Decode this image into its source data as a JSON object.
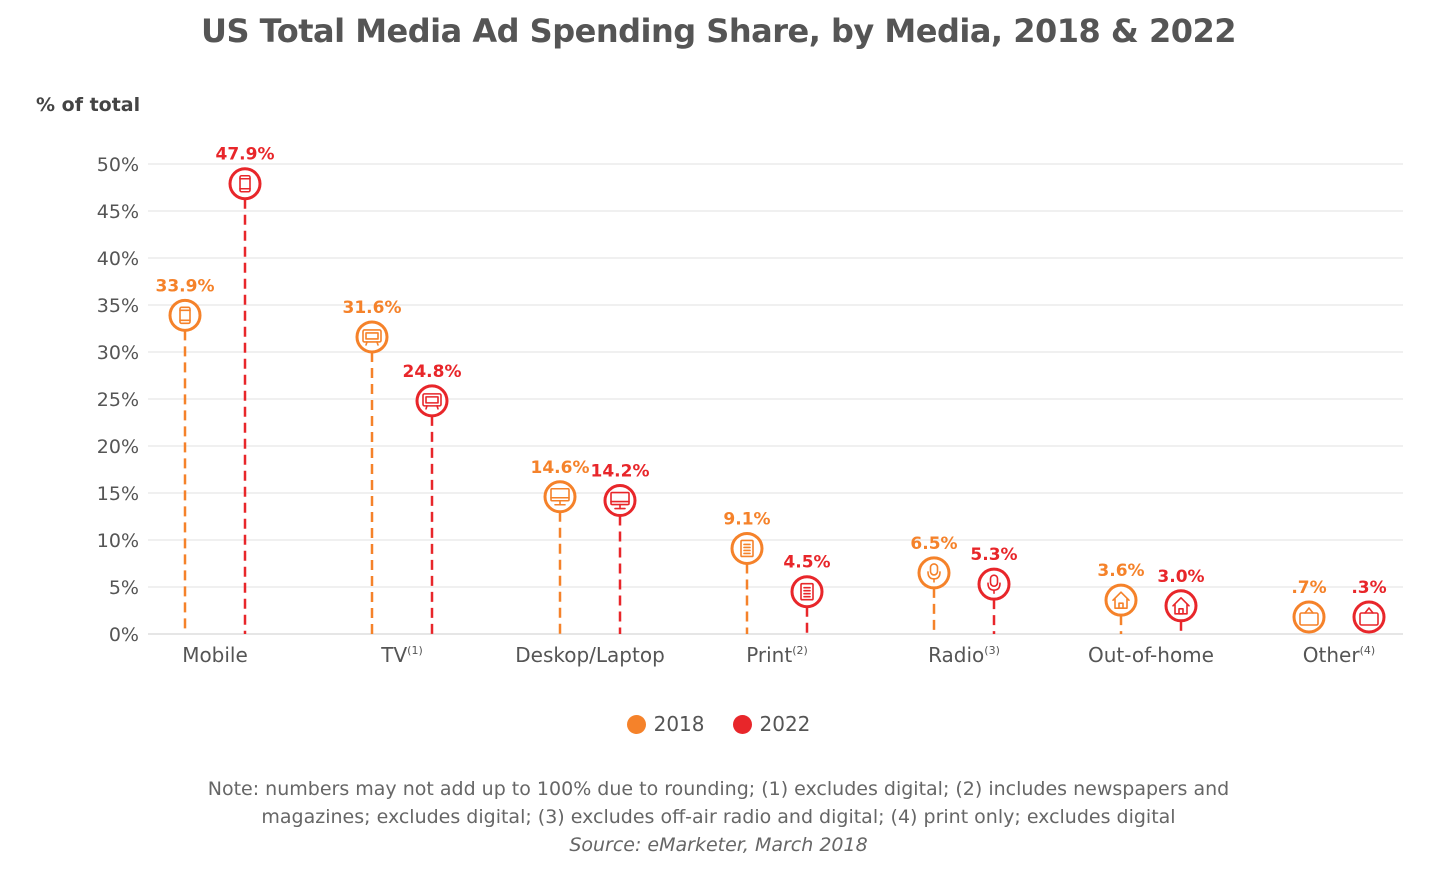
{
  "title": "US Total Media Ad Spending Share, by Media, 2018 & 2022",
  "note_line1": "Note: numbers may not add up to 100% due to rounding; (1) excludes digital; (2) includes newspapers and",
  "note_line2": "magazines; excludes digital; (3) excludes off-air radio and digital; (4) print only; excludes digital",
  "source": "Source: eMarketer, March 2018",
  "colors": {
    "2018": "#f5822a",
    "2022": "#e8262a",
    "grid": "#e6e6e6",
    "text": "#555555"
  },
  "chart_data": {
    "type": "scatter",
    "subtype": "lollipop",
    "title": "US Total Media Ad Spending Share, by Media, 2018 & 2022",
    "ylabel": "% of total",
    "xlabel": "",
    "ylim": [
      0,
      50
    ],
    "yticks": [
      "0%",
      "5%",
      "10%",
      "15%",
      "20%",
      "25%",
      "30%",
      "35%",
      "40%",
      "45%",
      "50%"
    ],
    "grid": true,
    "legend_position": "bottom",
    "categories": [
      {
        "name": "Mobile",
        "sup": "",
        "icon": "tablet-icon"
      },
      {
        "name": "TV",
        "sup": "(1)",
        "icon": "tv-icon"
      },
      {
        "name": "Deskop/Laptop",
        "sup": "",
        "icon": "monitor-icon"
      },
      {
        "name": "Print",
        "sup": "(2)",
        "icon": "document-icon"
      },
      {
        "name": "Radio",
        "sup": "(3)",
        "icon": "microphone-icon"
      },
      {
        "name": "Out-of-home",
        "sup": "",
        "icon": "house-icon"
      },
      {
        "name": "Other",
        "sup": "(4)",
        "icon": "briefcase-icon"
      }
    ],
    "series": [
      {
        "name": "2018",
        "color": "#f5822a",
        "values": [
          33.9,
          31.6,
          14.6,
          9.1,
          6.5,
          3.6,
          0.7
        ],
        "labels": [
          "33.9%",
          "31.6%",
          "14.6%",
          "9.1%",
          "6.5%",
          "3.6%",
          ".7%"
        ]
      },
      {
        "name": "2022",
        "color": "#e8262a",
        "values": [
          47.9,
          24.8,
          14.2,
          4.5,
          5.3,
          3.0,
          0.3
        ],
        "labels": [
          "47.9%",
          "24.8%",
          "14.2%",
          "4.5%",
          "5.3%",
          "3.0%",
          ".3%"
        ]
      }
    ]
  }
}
